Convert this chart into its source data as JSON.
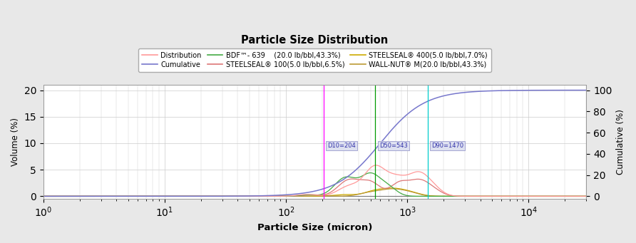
{
  "title": "Particle Size Distribution",
  "xlabel": "Particle Size (micron)",
  "ylabel_left": "Volume (%)",
  "ylabel_right": "Cumulative (%)",
  "xlim": [
    1,
    30000
  ],
  "ylim_left": [
    -0.5,
    21
  ],
  "ylim_right": [
    -2.5,
    105
  ],
  "d10": 204,
  "d50": 543,
  "d90": 1470,
  "vline_d10_color": "#ff00ff",
  "vline_d50_color": "#009900",
  "vline_d90_color": "#00cccc",
  "cumulative_color": "#7777cc",
  "distribution_color": "#ff9999",
  "steelseal100_color": "#dd7777",
  "steelseal400_color": "#ccaa00",
  "bdf_color": "#44aa44",
  "wallnut_color": "#bb9933",
  "background_color": "#e8e8e8",
  "plot_bg_color": "#ffffff",
  "grid_color": "#cccccc",
  "legend_labels": [
    "Distribution",
    "Cumulative",
    "BDF™- 639    (20.0 lb/bbl,43.3%)",
    "STEELSEAL® 100(5.0 lb/bbl,6.5%)",
    "STEELSEAL® 400(5.0 lb/bbl,7.0%)",
    "WALL-NUT® M(20.0 lb/bbl,43.3%)"
  ]
}
